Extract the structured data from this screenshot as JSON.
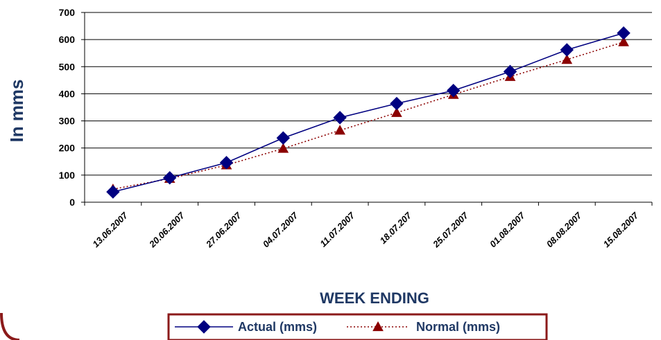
{
  "chart_data": {
    "type": "line",
    "title": "",
    "xlabel": "WEEK ENDING",
    "ylabel": "In mms",
    "categories": [
      "13.06.2007",
      "20.06.2007",
      "27.06.2007",
      "04.07.2007",
      "11.07.2007",
      "18.07.207",
      "25.07.2007",
      "01.08.2007",
      "08.08.2007",
      "15.08.2007"
    ],
    "ylim": [
      0,
      700
    ],
    "yticks": [
      "0",
      "100",
      "200",
      "300",
      "400",
      "500",
      "600",
      "700"
    ],
    "grid": "horizontal",
    "legend_position": "bottom",
    "series": [
      {
        "name": "Actual (mms)",
        "values": [
          38,
          90,
          146,
          237,
          312,
          364,
          412,
          482,
          562,
          624
        ],
        "color": "#000080",
        "marker": "diamond",
        "line": "solid"
      },
      {
        "name": "Normal (mms)",
        "values": [
          48,
          87,
          137,
          198,
          265,
          330,
          397,
          463,
          526,
          591
        ],
        "color": "#8b0000",
        "marker": "triangle",
        "line": "dotted"
      }
    ]
  },
  "colors": {
    "frame": "#8b1a1a",
    "axis_title": "#1f3864"
  }
}
